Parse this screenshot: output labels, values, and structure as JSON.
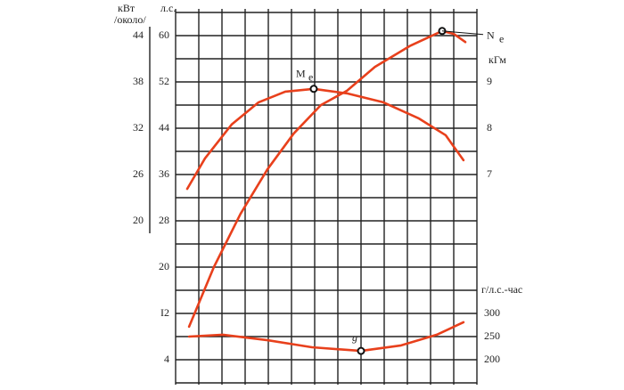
{
  "chart_data": {
    "type": "line",
    "labels": {
      "kw": "кВт",
      "approx": "/около/",
      "hp": "л.с.",
      "kgm": "кГм",
      "ge": "г/л.с.-час"
    },
    "xlim": [
      0,
      13
    ],
    "ylim": [
      0,
      64
    ],
    "yticks": [
      4,
      {
        "value": 12,
        "label": "I2"
      },
      20,
      28,
      36,
      44,
      52,
      60
    ],
    "ykwlim": [
      -1,
      47
    ],
    "ykwticks": [
      20,
      26,
      32,
      38,
      44
    ],
    "y2lim": [
      2.5,
      10.5
    ],
    "y2ticks": [
      7,
      8,
      9
    ],
    "y3lim": [
      150,
      950
    ],
    "y3ticks": [
      200,
      250,
      300
    ],
    "grid": true,
    "color": "#e8401c",
    "series": [
      {
        "name": "N",
        "sub": "e",
        "axis": "y",
        "marker": 9,
        "x": [
          0.58,
          1.65,
          2.8,
          3.96,
          5.1,
          6.27,
          7.4,
          8.6,
          10.1,
          11.5,
          12.0,
          12.5
        ],
        "values": [
          9.7,
          20,
          29.2,
          36.9,
          43.1,
          48,
          50.5,
          54.6,
          58.2,
          60.8,
          60.3,
          58.9
        ]
      },
      {
        "name": "M",
        "sub": "e",
        "axis": "y2",
        "marker": 5,
        "x": [
          0.5,
          1.27,
          2.42,
          3.58,
          4.73,
          5.96,
          7.42,
          8.96,
          10.5,
          11.65,
          12.42
        ],
        "values": [
          6.69,
          7.35,
          8.08,
          8.56,
          8.79,
          8.85,
          8.75,
          8.56,
          8.21,
          7.85,
          7.31
        ]
      },
      {
        "name": "g",
        "axis": "y3",
        "marker": 4,
        "x": [
          0.58,
          2.04,
          4.0,
          5.88,
          8.0,
          9.73,
          11.27,
          12.42
        ],
        "values": [
          250,
          254,
          242,
          227,
          219,
          231,
          254,
          281
        ]
      }
    ]
  }
}
